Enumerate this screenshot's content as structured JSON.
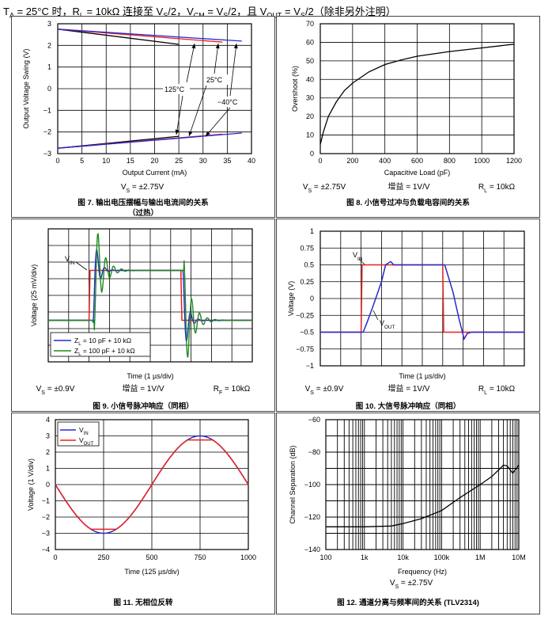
{
  "header": {
    "conditions": "TA = 25°C 时，RL = 10kΩ 连接至 VS/2，VCM = VS/2，且 VOUT = VS/2（除非另外注明）"
  },
  "chart_data": [
    {
      "id": "fig7",
      "type": "line",
      "title": "图 7. 输出电压摆幅与输出电流间的关系",
      "title_line2": "（过热）",
      "caption": [
        "VS = ±2.75V"
      ],
      "xlabel": "Output Current (mA)",
      "ylabel": "Output Voltage Swing (V)",
      "xlim": [
        0,
        40
      ],
      "ylim": [
        -3,
        3
      ],
      "xticks": [
        0,
        5,
        10,
        15,
        20,
        25,
        30,
        35,
        40
      ],
      "yticks": [
        -3,
        -2,
        -1,
        0,
        1,
        2,
        3
      ],
      "grid": true,
      "annotations": [
        "125°C",
        "25°C",
        "−40°C"
      ],
      "series": [
        {
          "name": "125°C",
          "color": "#000000",
          "x": [
            0,
            25,
            0,
            25
          ],
          "y": [
            2.75,
            2.05,
            -2.75,
            -2.2
          ],
          "segments": [
            [
              0,
              1
            ],
            [
              2,
              3
            ]
          ]
        },
        {
          "name": "25°C",
          "color": "#e8211f",
          "x": [
            0,
            34,
            0,
            34
          ],
          "y": [
            2.75,
            2.15,
            -2.75,
            -2.1
          ],
          "segments": [
            [
              0,
              1
            ],
            [
              2,
              3
            ]
          ]
        },
        {
          "name": "−40°C",
          "color": "#2828d0",
          "x": [
            0,
            38,
            0,
            38
          ],
          "y": [
            2.75,
            2.2,
            -2.75,
            -2.05
          ],
          "segments": [
            [
              0,
              1
            ],
            [
              2,
              3
            ]
          ]
        }
      ]
    },
    {
      "id": "fig8",
      "type": "line",
      "title": "图 8. 小信号过冲与负载电容间的关系",
      "caption": [
        "VS = ±2.75V",
        "增益 = 1V/V",
        "RL = 10kΩ"
      ],
      "xlabel": "Capacitive Load (pF)",
      "ylabel": "Overshoot (%)",
      "xlim": [
        0,
        1200
      ],
      "ylim": [
        0,
        70
      ],
      "xticks": [
        0,
        200,
        400,
        600,
        800,
        1000,
        1200
      ],
      "yticks": [
        0,
        10,
        20,
        30,
        40,
        50,
        60,
        70
      ],
      "grid": true,
      "series": [
        {
          "name": "Overshoot",
          "color": "#000000",
          "x": [
            0,
            20,
            50,
            100,
            150,
            200,
            300,
            400,
            500,
            600,
            800,
            1000,
            1200
          ],
          "y": [
            5,
            12,
            20,
            28,
            34,
            38,
            44,
            48,
            50.5,
            52.5,
            55,
            57,
            59
          ]
        }
      ]
    },
    {
      "id": "fig9",
      "type": "line",
      "title": "图 9. 小信号脉冲响应（同相）",
      "caption": [
        "VS = ±0.9V",
        "增益 = 1V/V",
        "RF = 10kΩ"
      ],
      "xlabel": "Time (1 µs/div)",
      "ylabel": "Voltage (25 mV/div)",
      "grid": true,
      "divisions": [
        10,
        8
      ],
      "annotations": [
        "VIN"
      ],
      "legend": [
        "ZL = 10 pF + 10 kΩ",
        "ZL = 100 pF + 10 kΩ"
      ],
      "series": [
        {
          "name": "VIN",
          "color": "#e8211f",
          "kind": "pulse",
          "t": [
            0,
            2,
            2.05,
            6.5,
            6.55,
            10
          ],
          "v": [
            -1.5,
            -1.5,
            1.5,
            1.5,
            -1.5,
            -1.5
          ]
        },
        {
          "name": "ZL = 10 pF + 10 kΩ",
          "color": "#2828d0",
          "kind": "ring",
          "t0": 2.2,
          "t1": 6.6,
          "amp": 1.0,
          "decay": 2.5
        },
        {
          "name": "ZL = 100 pF + 10 kΩ",
          "color": "#1f8a1f",
          "kind": "ring",
          "t0": 2.25,
          "t1": 6.65,
          "amp": 1.6,
          "decay": 1.4
        }
      ]
    },
    {
      "id": "fig10",
      "type": "line",
      "title": "图 10. 大信号脉冲响应（同相）",
      "caption": [
        "VS = ±0.9V",
        "增益 = 1V/V",
        "RL = 10kΩ"
      ],
      "xlabel": "Time (1 µs/div)",
      "ylabel": "Voltage (V)",
      "ylim": [
        -1,
        1
      ],
      "yticks": [
        -1,
        -0.75,
        -0.5,
        -0.25,
        0,
        0.25,
        0.5,
        0.75,
        1
      ],
      "grid": true,
      "divisions": [
        10,
        8
      ],
      "annotations": [
        "VIN",
        "VOUT"
      ],
      "series": [
        {
          "name": "VIN",
          "color": "#e8211f",
          "t": [
            0,
            2,
            2.05,
            6,
            6.05,
            10
          ],
          "v": [
            -0.5,
            -0.5,
            0.5,
            0.5,
            -0.5,
            -0.5
          ]
        },
        {
          "name": "VOUT",
          "color": "#2828d0",
          "t": [
            0,
            2.1,
            2.3,
            2.6,
            3.0,
            3.2,
            3.45,
            3.6,
            6.1,
            6.5,
            6.8,
            7.05,
            7.2,
            7.4,
            10
          ],
          "v": [
            -0.5,
            -0.5,
            -0.35,
            -0.1,
            0.25,
            0.5,
            0.55,
            0.5,
            0.5,
            0.1,
            -0.3,
            -0.6,
            -0.52,
            -0.5,
            -0.5
          ]
        }
      ]
    },
    {
      "id": "fig11",
      "type": "line",
      "title": "图 11. 无相位反转",
      "caption": [],
      "xlabel": "Time (125 µs/div)",
      "ylabel": "Voltage (1 V/div)",
      "xlim": [
        0,
        1000
      ],
      "ylim": [
        -4,
        4
      ],
      "xticks": [
        0,
        250,
        500,
        750,
        1000
      ],
      "yticks": [
        -4,
        -3,
        -2,
        -1,
        0,
        1,
        2,
        3,
        4
      ],
      "grid": true,
      "legend": [
        "VIN",
        "VOUT"
      ],
      "series": [
        {
          "name": "VIN",
          "color": "#2828d0",
          "kind": "sine",
          "amp": 3.0,
          "period": 1000,
          "sign": -1
        },
        {
          "name": "VOUT",
          "color": "#e8211f",
          "kind": "sine",
          "amp": 3.0,
          "period": 1000,
          "sign": -1,
          "clip": 2.75
        }
      ]
    },
    {
      "id": "fig12",
      "type": "line",
      "title": "图 12. 通道分离与频率间的关系 (TLV2314)",
      "caption": [
        "VS = ±2.75V"
      ],
      "xlabel": "Frequency (Hz)",
      "ylabel": "Channel Separation (dB)",
      "xscale": "log",
      "xlim": [
        100,
        10000000
      ],
      "ylim": [
        -140,
        -60
      ],
      "xticklabels": [
        "100",
        "1k",
        "10k",
        "100k",
        "1M",
        "10M"
      ],
      "yticks": [
        -140,
        -120,
        -100,
        -80,
        -60
      ],
      "grid": true,
      "series": [
        {
          "name": "Channel Separation",
          "color": "#000000",
          "x": [
            100,
            1000,
            5000,
            10000,
            30000,
            100000,
            300000,
            1000000,
            2000000,
            3000000,
            4000000,
            5000000,
            6000000,
            7000000,
            8000000,
            10000000
          ],
          "y": [
            -126,
            -126,
            -125.5,
            -124,
            -121,
            -116,
            -108,
            -100,
            -95,
            -91,
            -88,
            -88.5,
            -91,
            -93,
            -91,
            -88
          ]
        }
      ]
    }
  ]
}
